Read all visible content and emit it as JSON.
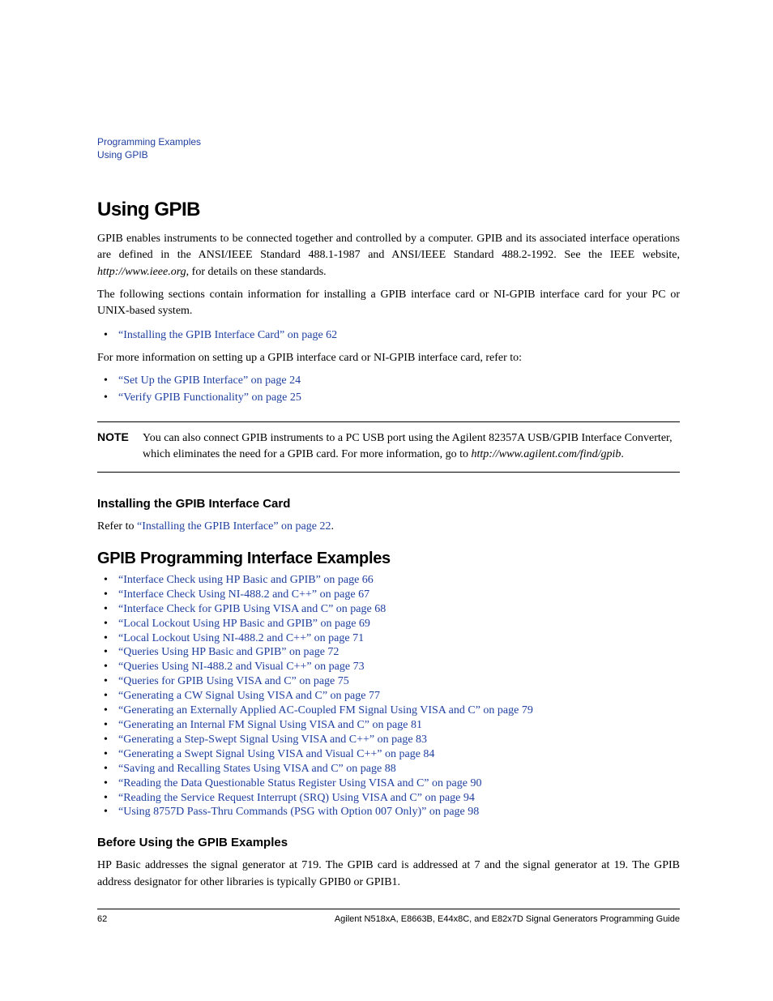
{
  "colors": {
    "link": "#2040a0",
    "text": "#000000",
    "background": "#ffffff",
    "rule": "#000000"
  },
  "breadcrumb": {
    "line1": "Programming Examples",
    "line2": "Using GPIB"
  },
  "h1": "Using GPIB",
  "para1_a": "GPIB enables instruments to be connected together and controlled by a computer. GPIB and its associated interface operations are defined in the ANSI/IEEE Standard 488.1-1987 and ANSI/IEEE Standard 488.2-1992. See the IEEE website, ",
  "para1_url": "http://www.ieee.org",
  "para1_b": ", for details on these standards.",
  "para2": "The following sections contain information for installing a GPIB interface card or NI-GPIB interface card for your PC or UNIX-based system.",
  "list1": {
    "items": [
      "“Installing the GPIB Interface Card” on page 62"
    ]
  },
  "para3": "For more information on setting up a GPIB interface card or NI-GPIB interface card, refer to:",
  "list2": {
    "items": [
      "“Set Up the GPIB Interface” on page 24",
      "“Verify GPIB Functionality” on page 25"
    ]
  },
  "note": {
    "label": "NOTE",
    "body_a": "You can also connect GPIB instruments to a PC USB port using the Agilent 82357A USB/GPIB Interface Converter, which eliminates the need for a GPIB card. For more information, go to ",
    "body_url": "http://www.agilent.com/find/gpib",
    "body_b": "."
  },
  "h3_install": "Installing the GPIB Interface Card",
  "install_para_a": "Refer to ",
  "install_para_link": "“Installing the GPIB Interface” on page 22",
  "install_para_b": ".",
  "h2_examples": "GPIB Programming Interface Examples",
  "examples_list": {
    "items": [
      "“Interface Check using HP Basic and GPIB” on page 66",
      "“Interface Check Using NI-488.2 and C++” on page 67",
      "“Interface Check for GPIB Using VISA and C” on page 68",
      "“Local Lockout Using HP Basic and GPIB” on page 69",
      "“Local Lockout Using NI-488.2 and C++” on page 71",
      "“Queries Using HP Basic and GPIB” on page 72",
      "“Queries Using NI-488.2 and Visual C++” on page 73",
      "“Queries for GPIB Using VISA and C” on page 75",
      "“Generating a CW Signal Using VISA and C” on page 77",
      "“Generating an Externally Applied AC-Coupled FM Signal Using VISA and C” on page 79",
      "“Generating an Internal FM Signal Using VISA and C” on page 81",
      "“Generating a Step-Swept Signal Using VISA and C++” on page 83",
      "“Generating a Swept Signal Using VISA and Visual C++” on page 84",
      "“Saving and Recalling States Using VISA and C” on page 88",
      "“Reading the Data Questionable Status Register Using VISA and C” on page 90",
      "“Reading the Service Request Interrupt (SRQ) Using VISA and C” on page 94",
      "“Using 8757D Pass-Thru Commands (PSG with Option 007 Only)” on page 98"
    ]
  },
  "h3_before": "Before Using the GPIB Examples",
  "before_para": "HP Basic addresses the signal generator at 719. The GPIB card is addressed at 7 and the signal generator at 19. The GPIB address designator for other libraries is typically GPIB0 or GPIB1.",
  "footer": {
    "page": "62",
    "doc_title": "Agilent N518xA, E8663B, E44x8C, and E82x7D Signal Generators Programming Guide"
  }
}
